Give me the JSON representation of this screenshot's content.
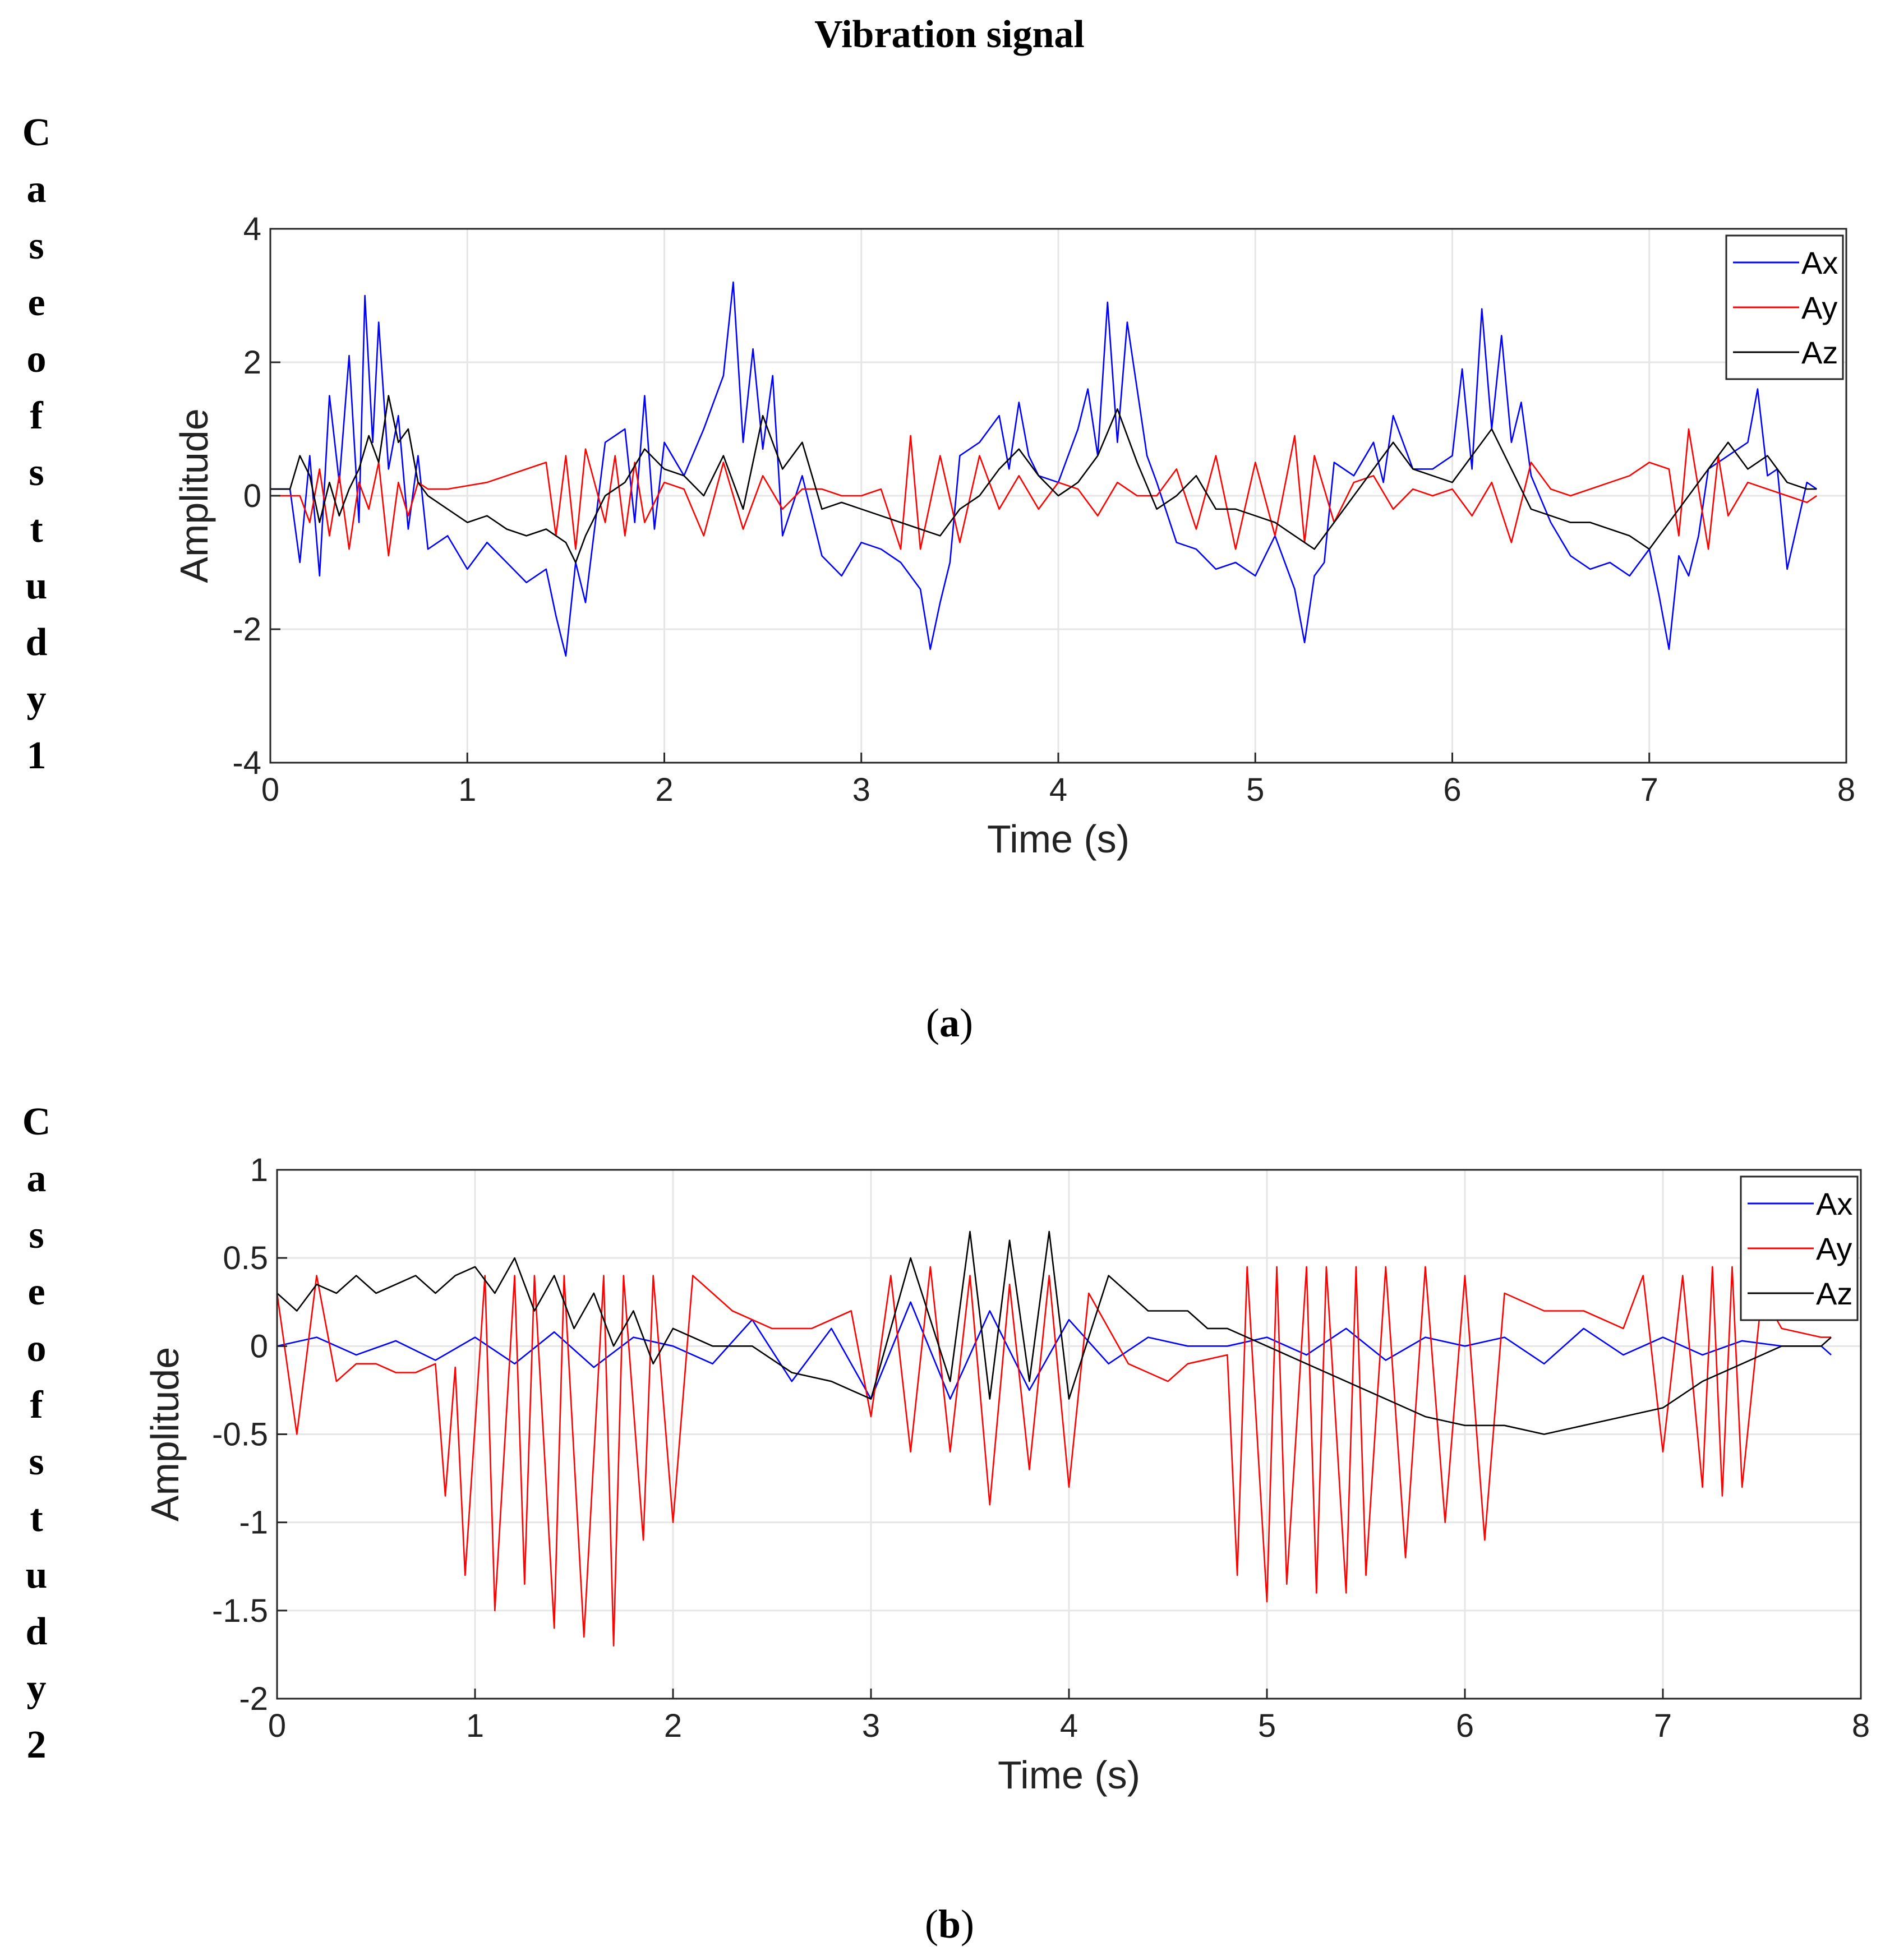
{
  "title": "Vibration signal",
  "case_labels": [
    [
      "C",
      "a",
      "s",
      "e",
      "o",
      "f",
      "s",
      "t",
      "u",
      "d",
      "y",
      "1"
    ],
    [
      "C",
      "a",
      "s",
      "e",
      "o",
      "f",
      "s",
      "t",
      "u",
      "d",
      "y",
      "2"
    ]
  ],
  "captions": [
    {
      "open": "(",
      "letter": "a",
      "close": ")"
    },
    {
      "open": "(",
      "letter": "b",
      "close": ")"
    }
  ],
  "colors": {
    "Ax": "#0000ff",
    "Ay": "#ff0000",
    "Az": "#000000"
  },
  "chart_data": [
    {
      "type": "line",
      "title": "",
      "xlabel": "Time (s)",
      "ylabel": "Amplitude",
      "xlim": [
        0,
        8
      ],
      "ylim": [
        -4,
        4
      ],
      "xticks": [
        0,
        1,
        2,
        3,
        4,
        5,
        6,
        7,
        8
      ],
      "xtick_labels": [
        "0",
        "1",
        "2",
        "3",
        "4",
        "5",
        "6",
        "7",
        "8"
      ],
      "yticks": [
        -4,
        -2,
        0,
        2,
        4
      ],
      "ytick_labels": [
        "-4",
        "-2",
        "0",
        "2",
        "4"
      ],
      "grid": true,
      "legend": "top-right",
      "series": [
        {
          "name": "Ax",
          "color": "#0000ff",
          "x": [
            0.0,
            0.1,
            0.15,
            0.2,
            0.25,
            0.3,
            0.35,
            0.4,
            0.45,
            0.48,
            0.52,
            0.55,
            0.6,
            0.65,
            0.7,
            0.75,
            0.8,
            0.9,
            1.0,
            1.1,
            1.2,
            1.3,
            1.4,
            1.45,
            1.5,
            1.55,
            1.6,
            1.7,
            1.8,
            1.85,
            1.9,
            1.95,
            2.0,
            2.1,
            2.2,
            2.3,
            2.35,
            2.4,
            2.45,
            2.5,
            2.55,
            2.6,
            2.7,
            2.8,
            2.9,
            3.0,
            3.1,
            3.2,
            3.3,
            3.35,
            3.4,
            3.45,
            3.5,
            3.6,
            3.7,
            3.75,
            3.8,
            3.85,
            3.9,
            4.0,
            4.1,
            4.15,
            4.2,
            4.25,
            4.3,
            4.35,
            4.4,
            4.45,
            4.5,
            4.6,
            4.7,
            4.8,
            4.9,
            5.0,
            5.1,
            5.2,
            5.25,
            5.3,
            5.35,
            5.4,
            5.5,
            5.6,
            5.65,
            5.7,
            5.8,
            5.9,
            6.0,
            6.05,
            6.1,
            6.15,
            6.2,
            6.25,
            6.3,
            6.35,
            6.4,
            6.5,
            6.6,
            6.7,
            6.8,
            6.9,
            7.0,
            7.05,
            7.1,
            7.15,
            7.2,
            7.25,
            7.3,
            7.4,
            7.5,
            7.55,
            7.6,
            7.65,
            7.7,
            7.8,
            7.85
          ],
          "y": [
            0.1,
            0.1,
            -1.0,
            0.6,
            -1.2,
            1.5,
            0.2,
            2.1,
            -0.4,
            3.0,
            0.8,
            2.6,
            0.4,
            1.2,
            -0.5,
            0.6,
            -0.8,
            -0.6,
            -1.1,
            -0.7,
            -1.0,
            -1.3,
            -1.1,
            -1.8,
            -2.4,
            -1.0,
            -1.6,
            0.8,
            1.0,
            -0.4,
            1.5,
            -0.5,
            0.8,
            0.3,
            1.0,
            1.8,
            3.2,
            0.8,
            2.2,
            0.7,
            1.8,
            -0.6,
            0.3,
            -0.9,
            -1.2,
            -0.7,
            -0.8,
            -1.0,
            -1.4,
            -2.3,
            -1.6,
            -1.0,
            0.6,
            0.8,
            1.2,
            0.4,
            1.4,
            0.6,
            0.3,
            0.2,
            1.0,
            1.6,
            0.6,
            2.9,
            0.8,
            2.6,
            1.6,
            0.6,
            0.2,
            -0.7,
            -0.8,
            -1.1,
            -1.0,
            -1.2,
            -0.6,
            -1.4,
            -2.2,
            -1.2,
            -1.0,
            0.5,
            0.3,
            0.8,
            0.2,
            1.2,
            0.4,
            0.4,
            0.6,
            1.9,
            0.4,
            2.8,
            1.0,
            2.4,
            0.8,
            1.4,
            0.3,
            -0.4,
            -0.9,
            -1.1,
            -1.0,
            -1.2,
            -0.8,
            -1.5,
            -2.3,
            -0.9,
            -1.2,
            -0.6,
            0.4,
            0.6,
            0.8,
            1.6,
            0.3,
            0.4,
            -1.1,
            0.2,
            0.1
          ]
        },
        {
          "name": "Ay",
          "color": "#ff0000",
          "x": [
            0.0,
            0.15,
            0.2,
            0.25,
            0.3,
            0.35,
            0.4,
            0.45,
            0.5,
            0.55,
            0.6,
            0.65,
            0.7,
            0.75,
            0.8,
            0.9,
            1.0,
            1.1,
            1.2,
            1.3,
            1.4,
            1.45,
            1.5,
            1.55,
            1.6,
            1.7,
            1.75,
            1.8,
            1.85,
            1.9,
            2.0,
            2.1,
            2.2,
            2.3,
            2.4,
            2.5,
            2.6,
            2.7,
            2.8,
            2.9,
            3.0,
            3.1,
            3.2,
            3.25,
            3.3,
            3.4,
            3.5,
            3.6,
            3.7,
            3.8,
            3.9,
            4.0,
            4.1,
            4.2,
            4.3,
            4.4,
            4.5,
            4.6,
            4.7,
            4.8,
            4.9,
            5.0,
            5.1,
            5.2,
            5.25,
            5.3,
            5.4,
            5.5,
            5.6,
            5.7,
            5.8,
            5.9,
            6.0,
            6.1,
            6.2,
            6.3,
            6.4,
            6.5,
            6.6,
            6.7,
            6.8,
            6.9,
            7.0,
            7.1,
            7.15,
            7.2,
            7.3,
            7.35,
            7.4,
            7.5,
            7.6,
            7.7,
            7.8,
            7.85
          ],
          "y": [
            0.0,
            0.0,
            -0.4,
            0.4,
            -0.6,
            0.3,
            -0.8,
            0.2,
            -0.2,
            0.5,
            -0.9,
            0.2,
            -0.3,
            0.2,
            0.1,
            0.1,
            0.15,
            0.2,
            0.3,
            0.4,
            0.5,
            -0.6,
            0.6,
            -0.8,
            0.7,
            -0.4,
            0.6,
            -0.6,
            0.5,
            -0.4,
            0.2,
            0.1,
            -0.6,
            0.5,
            -0.5,
            0.3,
            -0.2,
            0.1,
            0.1,
            0.0,
            0.0,
            0.1,
            -0.8,
            0.9,
            -0.8,
            0.6,
            -0.7,
            0.6,
            -0.2,
            0.3,
            -0.2,
            0.2,
            0.1,
            -0.3,
            0.2,
            0.0,
            0.0,
            0.4,
            -0.5,
            0.6,
            -0.8,
            0.5,
            -0.6,
            0.9,
            -0.7,
            0.6,
            -0.4,
            0.2,
            0.3,
            -0.2,
            0.1,
            0.0,
            0.1,
            -0.3,
            0.2,
            -0.7,
            0.5,
            0.1,
            0.0,
            0.1,
            0.2,
            0.3,
            0.5,
            0.4,
            -0.6,
            1.0,
            -0.8,
            0.6,
            -0.3,
            0.2,
            0.1,
            0.0,
            -0.1,
            0.0
          ]
        },
        {
          "name": "Az",
          "color": "#000000",
          "x": [
            0.0,
            0.1,
            0.15,
            0.2,
            0.25,
            0.3,
            0.35,
            0.4,
            0.45,
            0.5,
            0.55,
            0.6,
            0.65,
            0.7,
            0.75,
            0.8,
            0.9,
            1.0,
            1.1,
            1.2,
            1.3,
            1.4,
            1.5,
            1.55,
            1.6,
            1.7,
            1.8,
            1.9,
            2.0,
            2.1,
            2.2,
            2.3,
            2.4,
            2.5,
            2.6,
            2.7,
            2.8,
            2.9,
            3.0,
            3.1,
            3.2,
            3.3,
            3.4,
            3.5,
            3.6,
            3.7,
            3.8,
            3.9,
            4.0,
            4.1,
            4.2,
            4.3,
            4.4,
            4.5,
            4.6,
            4.7,
            4.8,
            4.9,
            5.0,
            5.1,
            5.2,
            5.3,
            5.4,
            5.5,
            5.6,
            5.7,
            5.8,
            5.9,
            6.0,
            6.1,
            6.2,
            6.3,
            6.4,
            6.5,
            6.6,
            6.7,
            6.8,
            6.9,
            7.0,
            7.1,
            7.2,
            7.3,
            7.4,
            7.5,
            7.6,
            7.7,
            7.8,
            7.85
          ],
          "y": [
            0.1,
            0.1,
            0.6,
            0.3,
            -0.4,
            0.2,
            -0.3,
            0.1,
            0.4,
            0.9,
            0.5,
            1.5,
            0.8,
            1.0,
            0.2,
            0.0,
            -0.2,
            -0.4,
            -0.3,
            -0.5,
            -0.6,
            -0.5,
            -0.7,
            -1.0,
            -0.6,
            0.0,
            0.2,
            0.7,
            0.4,
            0.3,
            0.0,
            0.6,
            -0.2,
            1.2,
            0.4,
            0.8,
            -0.2,
            -0.1,
            -0.2,
            -0.3,
            -0.4,
            -0.5,
            -0.6,
            -0.2,
            0.0,
            0.4,
            0.7,
            0.3,
            0.0,
            0.2,
            0.6,
            1.3,
            0.5,
            -0.2,
            0.0,
            0.3,
            -0.2,
            -0.2,
            -0.3,
            -0.4,
            -0.6,
            -0.8,
            -0.4,
            0.0,
            0.4,
            0.8,
            0.4,
            0.3,
            0.2,
            0.6,
            1.0,
            0.4,
            -0.2,
            -0.3,
            -0.4,
            -0.4,
            -0.5,
            -0.6,
            -0.8,
            -0.4,
            0.0,
            0.4,
            0.8,
            0.4,
            0.6,
            0.2,
            0.1,
            0.1
          ]
        }
      ]
    },
    {
      "type": "line",
      "title": "",
      "xlabel": "Time (s)",
      "ylabel": "Amplitude",
      "xlim": [
        0,
        8
      ],
      "ylim": [
        -2,
        1
      ],
      "xticks": [
        0,
        1,
        2,
        3,
        4,
        5,
        6,
        7,
        8
      ],
      "xtick_labels": [
        "0",
        "1",
        "2",
        "3",
        "4",
        "5",
        "6",
        "7",
        "8"
      ],
      "yticks": [
        -2,
        -1.5,
        -1,
        -0.5,
        0,
        0.5,
        1
      ],
      "ytick_labels": [
        "-2",
        "-1.5",
        "-1",
        "-0.5",
        "0",
        "0.5",
        "1"
      ],
      "grid": true,
      "legend": "top-right",
      "series": [
        {
          "name": "Ax",
          "color": "#0000ff",
          "x": [
            0.0,
            0.2,
            0.4,
            0.6,
            0.8,
            1.0,
            1.2,
            1.4,
            1.6,
            1.8,
            2.0,
            2.2,
            2.4,
            2.6,
            2.8,
            3.0,
            3.2,
            3.4,
            3.6,
            3.8,
            4.0,
            4.2,
            4.4,
            4.6,
            4.8,
            5.0,
            5.2,
            5.4,
            5.6,
            5.8,
            6.0,
            6.2,
            6.4,
            6.6,
            6.8,
            7.0,
            7.2,
            7.4,
            7.6,
            7.8,
            7.85
          ],
          "y": [
            0.0,
            0.05,
            -0.05,
            0.03,
            -0.08,
            0.05,
            -0.1,
            0.08,
            -0.12,
            0.05,
            0.0,
            -0.1,
            0.15,
            -0.2,
            0.1,
            -0.3,
            0.25,
            -0.3,
            0.2,
            -0.25,
            0.15,
            -0.1,
            0.05,
            0.0,
            0.0,
            0.05,
            -0.05,
            0.1,
            -0.08,
            0.05,
            0.0,
            0.05,
            -0.1,
            0.1,
            -0.05,
            0.05,
            -0.05,
            0.03,
            0.0,
            0.0,
            -0.05
          ]
        },
        {
          "name": "Ay",
          "color": "#ff0000",
          "x": [
            0.0,
            0.1,
            0.2,
            0.3,
            0.4,
            0.5,
            0.6,
            0.7,
            0.8,
            0.85,
            0.9,
            0.95,
            1.05,
            1.1,
            1.2,
            1.25,
            1.3,
            1.4,
            1.45,
            1.55,
            1.65,
            1.7,
            1.75,
            1.85,
            1.9,
            2.0,
            2.1,
            2.3,
            2.5,
            2.7,
            2.9,
            3.0,
            3.1,
            3.2,
            3.3,
            3.4,
            3.5,
            3.6,
            3.7,
            3.8,
            3.9,
            4.0,
            4.1,
            4.3,
            4.5,
            4.6,
            4.8,
            4.85,
            4.9,
            5.0,
            5.05,
            5.1,
            5.2,
            5.25,
            5.3,
            5.4,
            5.45,
            5.5,
            5.6,
            5.7,
            5.8,
            5.9,
            6.0,
            6.1,
            6.2,
            6.4,
            6.6,
            6.8,
            6.9,
            7.0,
            7.1,
            7.2,
            7.25,
            7.3,
            7.35,
            7.4,
            7.5,
            7.6,
            7.8,
            7.85
          ],
          "y": [
            0.3,
            -0.5,
            0.4,
            -0.2,
            -0.1,
            -0.1,
            -0.15,
            -0.15,
            -0.1,
            -0.85,
            -0.12,
            -1.3,
            0.4,
            -1.5,
            0.4,
            -1.35,
            0.4,
            -1.6,
            0.4,
            -1.65,
            0.4,
            -1.7,
            0.4,
            -1.1,
            0.4,
            -1.0,
            0.4,
            0.2,
            0.1,
            0.1,
            0.2,
            -0.4,
            0.4,
            -0.6,
            0.45,
            -0.6,
            0.4,
            -0.9,
            0.35,
            -0.7,
            0.4,
            -0.8,
            0.3,
            -0.1,
            -0.2,
            -0.1,
            -0.05,
            -1.3,
            0.45,
            -1.45,
            0.45,
            -1.35,
            0.45,
            -1.4,
            0.45,
            -1.4,
            0.45,
            -1.3,
            0.45,
            -1.2,
            0.45,
            -1.0,
            0.4,
            -1.1,
            0.3,
            0.2,
            0.2,
            0.1,
            0.4,
            -0.6,
            0.4,
            -0.8,
            0.45,
            -0.85,
            0.45,
            -0.8,
            0.3,
            0.1,
            0.05,
            0.05
          ]
        },
        {
          "name": "Az",
          "color": "#000000",
          "x": [
            0.0,
            0.1,
            0.2,
            0.3,
            0.4,
            0.5,
            0.6,
            0.7,
            0.8,
            0.9,
            1.0,
            1.1,
            1.2,
            1.3,
            1.4,
            1.5,
            1.6,
            1.7,
            1.8,
            1.9,
            2.0,
            2.2,
            2.4,
            2.6,
            2.8,
            3.0,
            3.2,
            3.4,
            3.5,
            3.6,
            3.7,
            3.8,
            3.9,
            4.0,
            4.2,
            4.4,
            4.6,
            4.7,
            4.8,
            5.0,
            5.2,
            5.4,
            5.6,
            5.8,
            6.0,
            6.2,
            6.4,
            6.6,
            6.8,
            7.0,
            7.2,
            7.4,
            7.6,
            7.8,
            7.85
          ],
          "y": [
            0.3,
            0.2,
            0.35,
            0.3,
            0.4,
            0.3,
            0.35,
            0.4,
            0.3,
            0.4,
            0.45,
            0.3,
            0.5,
            0.2,
            0.4,
            0.1,
            0.3,
            0.0,
            0.2,
            -0.1,
            0.1,
            0.0,
            0.0,
            -0.15,
            -0.2,
            -0.3,
            0.5,
            -0.2,
            0.65,
            -0.3,
            0.6,
            -0.2,
            0.65,
            -0.3,
            0.4,
            0.2,
            0.2,
            0.1,
            0.1,
            0.0,
            -0.1,
            -0.2,
            -0.3,
            -0.4,
            -0.45,
            -0.45,
            -0.5,
            -0.45,
            -0.4,
            -0.35,
            -0.2,
            -0.1,
            0.0,
            0.0,
            0.05
          ]
        }
      ]
    }
  ]
}
